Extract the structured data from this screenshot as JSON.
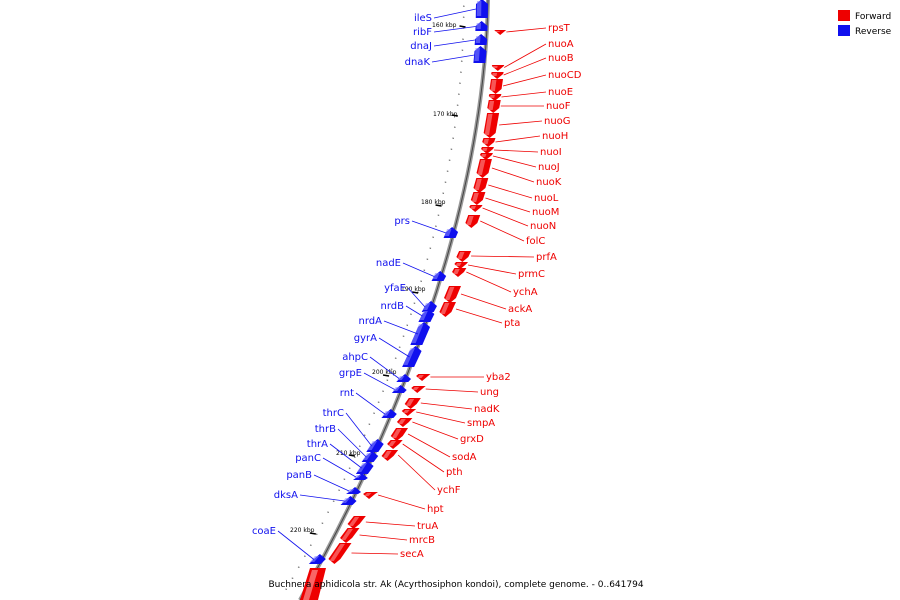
{
  "legend": [
    {
      "label": "Forward",
      "color": "#ee0000"
    },
    {
      "label": "Reverse",
      "color": "#1010ee"
    }
  ],
  "caption": "Buchnera aphidicola str. Ak (Acyrthosiphon kondoi), complete genome. - 0..641794",
  "tick_labels": [
    "160 kbp",
    "170 kbp",
    "180 kbp",
    "190 kbp",
    "200 kbp",
    "210 kbp",
    "220 kbp"
  ],
  "reverse_genes": [
    "ileS",
    "ribF",
    "dnaJ",
    "dnaK",
    "prs",
    "nadE",
    "yfaE",
    "nrdB",
    "nrdA",
    "gyrA",
    "ahpC",
    "grpE",
    "rnt",
    "thrC",
    "thrB",
    "thrA",
    "panC",
    "panB",
    "dksA",
    "coaE"
  ],
  "forward_genes": [
    "rpsT",
    "nuoA",
    "nuoB",
    "nuoCD",
    "nuoE",
    "nuoF",
    "nuoG",
    "nuoH",
    "nuoI",
    "nuoJ",
    "nuoK",
    "nuoL",
    "nuoM",
    "nuoN",
    "folC",
    "prfA",
    "prmC",
    "ychA",
    "ackA",
    "pta",
    "yba2",
    "ung",
    "nadK",
    "smpA",
    "grxD",
    "sodA",
    "pth",
    "ychF",
    "hpt",
    "truA",
    "mrcB",
    "secA"
  ]
}
